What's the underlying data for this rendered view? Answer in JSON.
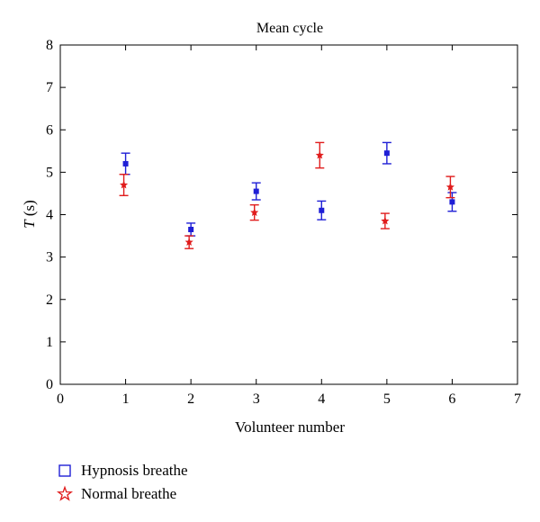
{
  "chart_data": {
    "type": "scatter",
    "title": "Mean cycle",
    "xlabel": "Volunteer number",
    "ylabel_italic": "T",
    "ylabel_rest": " (s)",
    "xlim": [
      0,
      7
    ],
    "ylim": [
      0,
      8
    ],
    "xticks": [
      0,
      1,
      2,
      3,
      4,
      5,
      6,
      7
    ],
    "yticks": [
      0,
      1,
      2,
      3,
      4,
      5,
      6,
      7,
      8
    ],
    "grid": false,
    "legend_position": "bottom-left outside",
    "series": [
      {
        "name": "Hypnosis breathe",
        "marker": "square",
        "color": "#1f1fd6",
        "x": [
          1,
          2,
          3,
          4,
          5,
          6
        ],
        "y": [
          5.2,
          3.65,
          4.55,
          4.1,
          5.45,
          4.3
        ],
        "err_low": [
          0.25,
          0.15,
          0.2,
          0.22,
          0.25,
          0.22
        ],
        "err_high": [
          0.25,
          0.15,
          0.2,
          0.22,
          0.25,
          0.22
        ]
      },
      {
        "name": "Normal breathe",
        "marker": "star",
        "color": "#e01c1c",
        "x": [
          1,
          2,
          3,
          4,
          5,
          6
        ],
        "y": [
          4.7,
          3.35,
          4.05,
          5.4,
          3.85,
          4.65
        ],
        "err_low": [
          0.25,
          0.15,
          0.18,
          0.3,
          0.18,
          0.25
        ],
        "err_high": [
          0.25,
          0.15,
          0.18,
          0.3,
          0.18,
          0.25
        ]
      }
    ]
  }
}
